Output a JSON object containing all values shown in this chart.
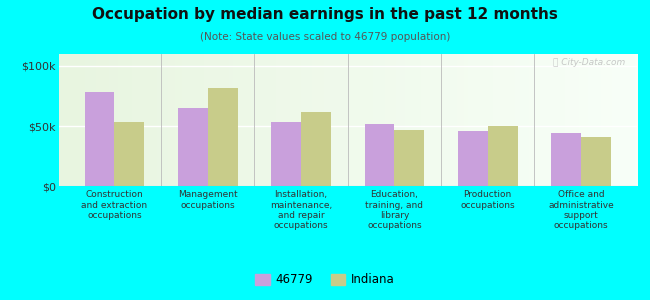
{
  "title": "Occupation by median earnings in the past 12 months",
  "subtitle": "(Note: State values scaled to 46779 population)",
  "categories": [
    "Construction\nand extraction\noccupations",
    "Management\noccupations",
    "Installation,\nmaintenance,\nand repair\noccupations",
    "Education,\ntraining, and\nlibrary\noccupations",
    "Production\noccupations",
    "Office and\nadministrative\nsupport\noccupations"
  ],
  "values_46779": [
    78000,
    65000,
    53000,
    52000,
    46000,
    44000
  ],
  "values_indiana": [
    53000,
    82000,
    62000,
    47000,
    50000,
    41000
  ],
  "bar_color_46779": "#c9a0dc",
  "bar_color_indiana": "#c8cc8a",
  "background_color": "#00ffff",
  "ylabel_ticks": [
    "$0",
    "$50k",
    "$100k"
  ],
  "ytick_values": [
    0,
    50000,
    100000
  ],
  "ylim": [
    0,
    110000
  ],
  "legend_label_1": "46779",
  "legend_label_2": "Indiana",
  "watermark": "ⓘ City-Data.com"
}
